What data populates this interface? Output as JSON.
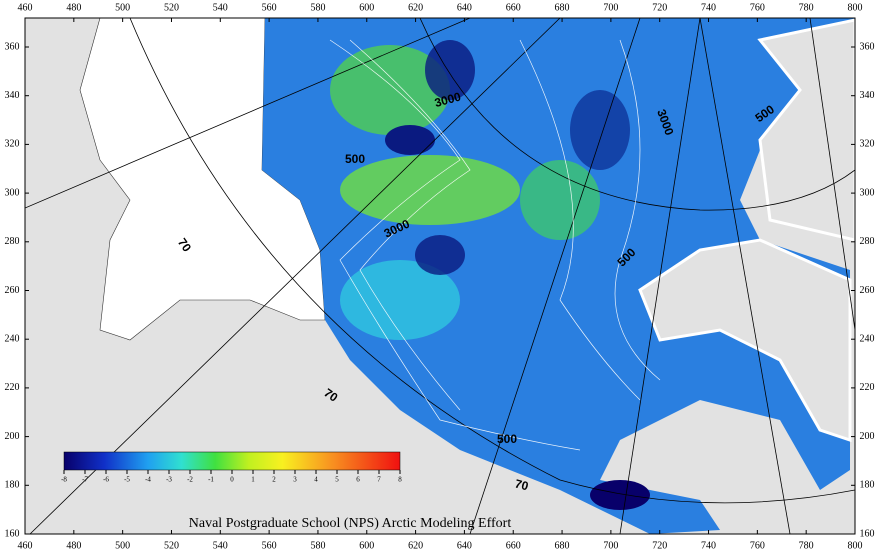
{
  "map": {
    "x_ticks": [
      460,
      480,
      500,
      520,
      540,
      560,
      580,
      600,
      620,
      640,
      660,
      680,
      700,
      720,
      740,
      760,
      780,
      800
    ],
    "y_ticks": [
      160,
      180,
      200,
      220,
      240,
      260,
      280,
      300,
      320,
      340,
      360
    ],
    "colorbar_ticks": [
      -8,
      -7,
      -6,
      -5,
      -4,
      -3,
      -2,
      -1,
      0,
      1,
      2,
      3,
      4,
      5,
      6,
      7,
      8
    ],
    "contour_labels": [
      "3000",
      "3000",
      "500",
      "500",
      "3000",
      "70",
      "500",
      "70",
      "500",
      "70"
    ],
    "footer": "Naval Postgraduate School (NPS) Arctic Modeling Effort"
  }
}
